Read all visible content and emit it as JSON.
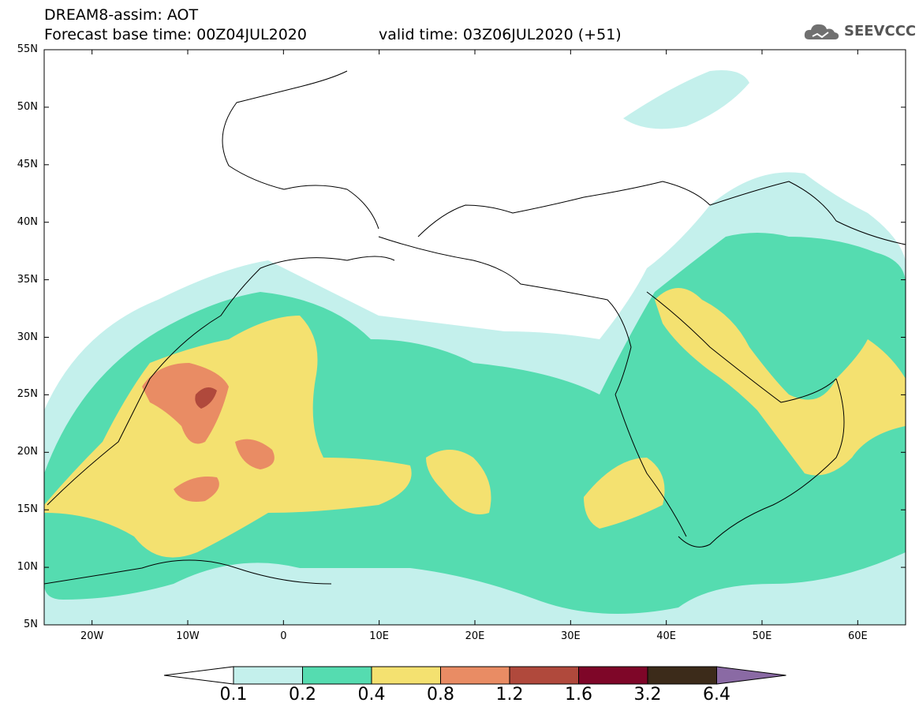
{
  "title": {
    "line1": "DREAM8-assim: AOT",
    "line2": "Forecast base time: 00Z04JUL2020",
    "valid": "valid time: 03Z06JUL2020 (+51)"
  },
  "logo": {
    "text": "SEEVCCC",
    "icon": "cloud-logo-icon"
  },
  "map": {
    "lon_range": [
      -25,
      65
    ],
    "lat_range": [
      5,
      55
    ],
    "y_ticks": [
      "55N",
      "50N",
      "45N",
      "40N",
      "35N",
      "30N",
      "25N",
      "20N",
      "15N",
      "10N",
      "5N"
    ],
    "x_ticks": [
      "20W",
      "10W",
      "0",
      "10E",
      "20E",
      "30E",
      "40E",
      "50E",
      "60E"
    ]
  },
  "colorbar": {
    "labels": [
      "0.1",
      "0.2",
      "0.4",
      "0.8",
      "1.2",
      "1.6",
      "3.2",
      "6.4"
    ],
    "colors": [
      "#ffffff",
      "#c4f0ec",
      "#55dcb0",
      "#f4e170",
      "#e98c64",
      "#b0493c",
      "#7e0628",
      "#3c2b1a",
      "#8a6aa4"
    ]
  }
}
